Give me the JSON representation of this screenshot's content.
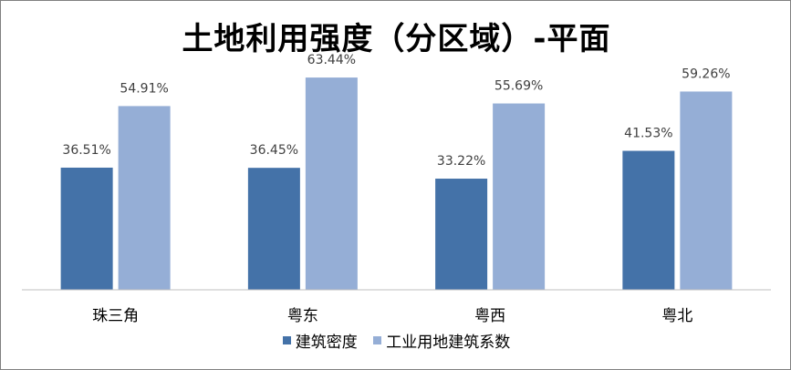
{
  "chart_data": {
    "type": "bar",
    "title": "土地利用强度（分区域）-平面",
    "categories": [
      "珠三角",
      "粤东",
      "粤西",
      "粤北"
    ],
    "series": [
      {
        "name": "建筑密度",
        "color": "#4472a8",
        "values": [
          36.51,
          36.45,
          33.22,
          41.53
        ],
        "labels": [
          "36.51%",
          "36.45%",
          "33.22%",
          "41.53%"
        ]
      },
      {
        "name": "工业用地建筑系数",
        "color": "#95aed6",
        "values": [
          54.91,
          63.44,
          55.69,
          59.26
        ],
        "labels": [
          "54.91%",
          "63.44%",
          "55.69%",
          "59.26%"
        ]
      }
    ],
    "ylim": [
      0,
      70
    ],
    "grid": false,
    "legend": "bottom"
  }
}
